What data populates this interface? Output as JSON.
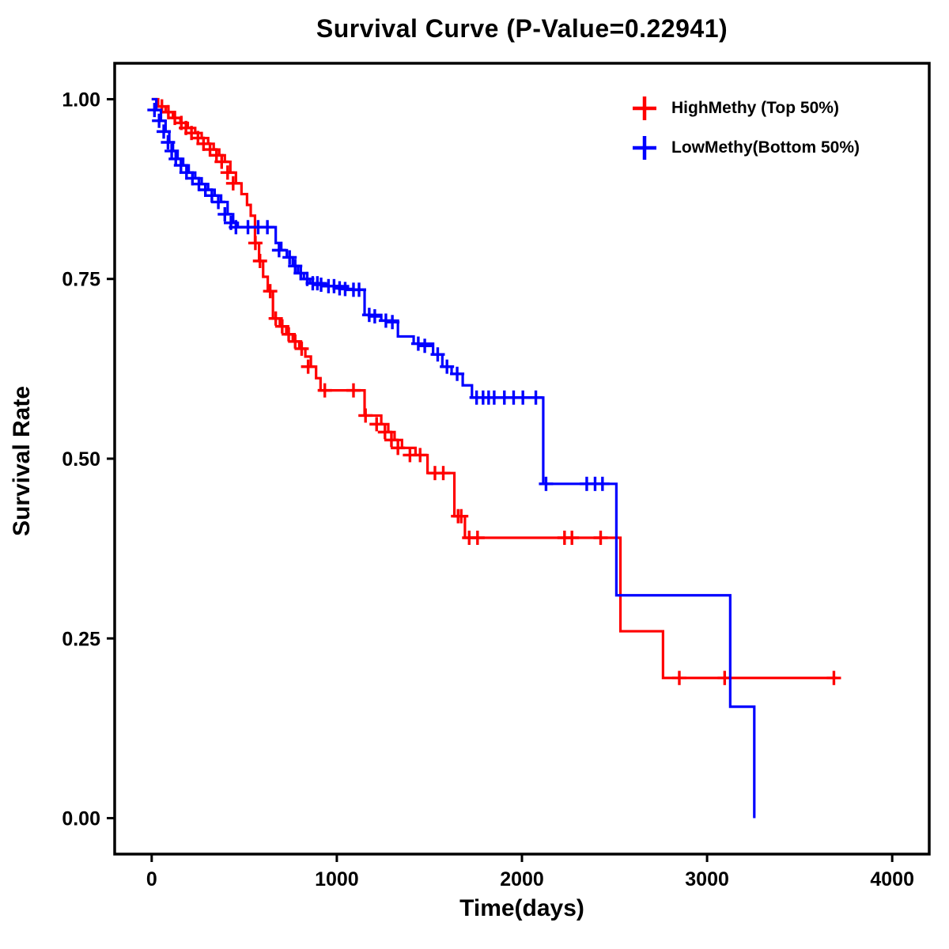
{
  "chart_data": {
    "type": "line",
    "subtype": "kaplan-meier-step",
    "title": "Survival Curve (P-Value=0.22941)",
    "xlabel": "Time(days)",
    "ylabel": "Survival Rate",
    "xlim": [
      -200,
      4200
    ],
    "ylim": [
      -0.05,
      1.05
    ],
    "xticks": [
      0,
      1000,
      2000,
      3000,
      4000
    ],
    "xtick_labels": [
      "0",
      "1000",
      "2000",
      "3000",
      "4000"
    ],
    "yticks": [
      0,
      0.25,
      0.5,
      0.75,
      1.0
    ],
    "ytick_labels": [
      "0.00",
      "0.25",
      "0.50",
      "0.75",
      "1.00"
    ],
    "grid": false,
    "legend_position": "top-right-inside",
    "axis_color": "#000000",
    "background_color": "#ffffff",
    "series": [
      {
        "name": "HighMethy (Top 50%)",
        "color": "#FF0000",
        "steps": [
          [
            0,
            1.0
          ],
          [
            35,
            0.99
          ],
          [
            75,
            0.982
          ],
          [
            115,
            0.974
          ],
          [
            155,
            0.967
          ],
          [
            195,
            0.96
          ],
          [
            235,
            0.953
          ],
          [
            270,
            0.946
          ],
          [
            305,
            0.938
          ],
          [
            335,
            0.93
          ],
          [
            365,
            0.922
          ],
          [
            395,
            0.913
          ],
          [
            425,
            0.898
          ],
          [
            455,
            0.883
          ],
          [
            485,
            0.868
          ],
          [
            515,
            0.853
          ],
          [
            535,
            0.838
          ],
          [
            558,
            0.8
          ],
          [
            580,
            0.775
          ],
          [
            602,
            0.753
          ],
          [
            627,
            0.733
          ],
          [
            655,
            0.695
          ],
          [
            692,
            0.684
          ],
          [
            727,
            0.673
          ],
          [
            762,
            0.663
          ],
          [
            797,
            0.653
          ],
          [
            830,
            0.642
          ],
          [
            860,
            0.628
          ],
          [
            888,
            0.612
          ],
          [
            912,
            0.595
          ],
          [
            1150,
            0.56
          ],
          [
            1240,
            0.548
          ],
          [
            1278,
            0.537
          ],
          [
            1312,
            0.526
          ],
          [
            1352,
            0.515
          ],
          [
            1425,
            0.505
          ],
          [
            1490,
            0.48
          ],
          [
            1635,
            0.42
          ],
          [
            1692,
            0.39
          ],
          [
            2532,
            0.26
          ],
          [
            2762,
            0.195
          ],
          [
            3700,
            0.195
          ]
        ],
        "censors": [
          [
            55,
            0.99
          ],
          [
            90,
            0.982
          ],
          [
            125,
            0.974
          ],
          [
            160,
            0.967
          ],
          [
            185,
            0.96
          ],
          [
            215,
            0.953
          ],
          [
            250,
            0.946
          ],
          [
            280,
            0.938
          ],
          [
            315,
            0.93
          ],
          [
            350,
            0.922
          ],
          [
            378,
            0.913
          ],
          [
            410,
            0.898
          ],
          [
            440,
            0.883
          ],
          [
            560,
            0.8
          ],
          [
            585,
            0.775
          ],
          [
            640,
            0.733
          ],
          [
            670,
            0.695
          ],
          [
            705,
            0.684
          ],
          [
            740,
            0.673
          ],
          [
            775,
            0.663
          ],
          [
            810,
            0.653
          ],
          [
            845,
            0.628
          ],
          [
            935,
            0.595
          ],
          [
            1090,
            0.595
          ],
          [
            1155,
            0.56
          ],
          [
            1215,
            0.548
          ],
          [
            1260,
            0.537
          ],
          [
            1295,
            0.526
          ],
          [
            1330,
            0.515
          ],
          [
            1395,
            0.505
          ],
          [
            1450,
            0.505
          ],
          [
            1530,
            0.48
          ],
          [
            1575,
            0.48
          ],
          [
            1655,
            0.42
          ],
          [
            1672,
            0.42
          ],
          [
            1715,
            0.39
          ],
          [
            1760,
            0.39
          ],
          [
            2230,
            0.39
          ],
          [
            2270,
            0.39
          ],
          [
            2425,
            0.39
          ],
          [
            2850,
            0.195
          ],
          [
            3095,
            0.195
          ],
          [
            3685,
            0.195
          ]
        ]
      },
      {
        "name": "LowMethy(Bottom 50%)",
        "color": "#0000FF",
        "steps": [
          [
            0,
            1.0
          ],
          [
            25,
            0.985
          ],
          [
            50,
            0.97
          ],
          [
            75,
            0.955
          ],
          [
            95,
            0.94
          ],
          [
            115,
            0.928
          ],
          [
            140,
            0.917
          ],
          [
            170,
            0.908
          ],
          [
            200,
            0.898
          ],
          [
            235,
            0.89
          ],
          [
            270,
            0.882
          ],
          [
            305,
            0.874
          ],
          [
            340,
            0.866
          ],
          [
            375,
            0.857
          ],
          [
            410,
            0.84
          ],
          [
            440,
            0.828
          ],
          [
            465,
            0.822
          ],
          [
            670,
            0.8
          ],
          [
            700,
            0.79
          ],
          [
            730,
            0.78
          ],
          [
            762,
            0.768
          ],
          [
            790,
            0.758
          ],
          [
            822,
            0.75
          ],
          [
            855,
            0.744
          ],
          [
            940,
            0.74
          ],
          [
            1060,
            0.735
          ],
          [
            1150,
            0.7
          ],
          [
            1240,
            0.692
          ],
          [
            1330,
            0.67
          ],
          [
            1415,
            0.66
          ],
          [
            1520,
            0.645
          ],
          [
            1570,
            0.628
          ],
          [
            1620,
            0.618
          ],
          [
            1680,
            0.602
          ],
          [
            1730,
            0.585
          ],
          [
            2115,
            0.465
          ],
          [
            2510,
            0.31
          ],
          [
            3125,
            0.155
          ],
          [
            3255,
            0.0
          ]
        ],
        "censors": [
          [
            15,
            0.985
          ],
          [
            40,
            0.97
          ],
          [
            65,
            0.955
          ],
          [
            88,
            0.94
          ],
          [
            108,
            0.928
          ],
          [
            130,
            0.917
          ],
          [
            158,
            0.908
          ],
          [
            188,
            0.898
          ],
          [
            220,
            0.89
          ],
          [
            255,
            0.882
          ],
          [
            290,
            0.874
          ],
          [
            325,
            0.866
          ],
          [
            360,
            0.857
          ],
          [
            395,
            0.84
          ],
          [
            428,
            0.828
          ],
          [
            455,
            0.822
          ],
          [
            520,
            0.822
          ],
          [
            575,
            0.822
          ],
          [
            625,
            0.822
          ],
          [
            688,
            0.79
          ],
          [
            745,
            0.78
          ],
          [
            775,
            0.768
          ],
          [
            805,
            0.758
          ],
          [
            840,
            0.75
          ],
          [
            870,
            0.744
          ],
          [
            895,
            0.744
          ],
          [
            915,
            0.742
          ],
          [
            955,
            0.74
          ],
          [
            985,
            0.74
          ],
          [
            1015,
            0.737
          ],
          [
            1045,
            0.736
          ],
          [
            1090,
            0.735
          ],
          [
            1120,
            0.735
          ],
          [
            1175,
            0.7
          ],
          [
            1205,
            0.698
          ],
          [
            1265,
            0.692
          ],
          [
            1300,
            0.69
          ],
          [
            1440,
            0.66
          ],
          [
            1475,
            0.657
          ],
          [
            1545,
            0.645
          ],
          [
            1595,
            0.628
          ],
          [
            1650,
            0.618
          ],
          [
            1755,
            0.585
          ],
          [
            1790,
            0.585
          ],
          [
            1820,
            0.585
          ],
          [
            1850,
            0.585
          ],
          [
            1905,
            0.585
          ],
          [
            1955,
            0.585
          ],
          [
            2005,
            0.585
          ],
          [
            2075,
            0.585
          ],
          [
            2130,
            0.465
          ],
          [
            2350,
            0.465
          ],
          [
            2395,
            0.465
          ],
          [
            2435,
            0.465
          ]
        ]
      }
    ]
  }
}
